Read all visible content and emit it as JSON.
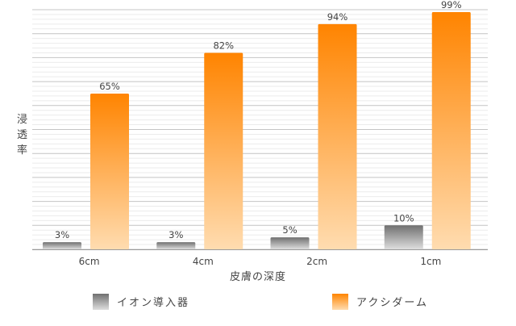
{
  "chart_data": {
    "type": "bar",
    "categories": [
      "6cm",
      "4cm",
      "2cm",
      "1cm"
    ],
    "series": [
      {
        "name": "イオン導入器",
        "values": [
          3,
          3,
          5,
          10
        ],
        "labels": [
          "3%",
          "3%",
          "5%",
          "10%"
        ],
        "color": "#808080"
      },
      {
        "name": "アクシダーム",
        "values": [
          65,
          82,
          94,
          99
        ],
        "labels": [
          "65%",
          "82%",
          "94%",
          "99%"
        ],
        "color": "#ff8a00"
      }
    ],
    "xlabel": "皮膚の深度",
    "ylabel": "浸透率",
    "ylim": [
      0,
      100
    ],
    "grid": true,
    "legend": "bottom"
  }
}
